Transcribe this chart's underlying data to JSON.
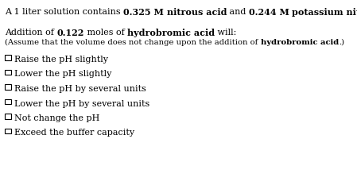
{
  "background_color": "#ffffff",
  "text_color": "#000000",
  "line1_parts": [
    [
      "A 1 liter solution contains ",
      false
    ],
    [
      "0.325 M",
      true
    ],
    [
      " ",
      false
    ],
    [
      "nitrous acid",
      true
    ],
    [
      " and ",
      false
    ],
    [
      "0.244 M",
      true
    ],
    [
      " ",
      false
    ],
    [
      "potassium nitrite",
      true
    ],
    [
      ".",
      false
    ]
  ],
  "line2_parts": [
    [
      "Addition of ",
      false
    ],
    [
      "0.122",
      true
    ],
    [
      " moles of ",
      false
    ],
    [
      "hydrobromic acid",
      true
    ],
    [
      " will:",
      false
    ]
  ],
  "line3_parts": [
    [
      "(Assume that the volume does not change upon the addition of ",
      false
    ],
    [
      "hydrobromic acid",
      true
    ],
    [
      ".)",
      false
    ]
  ],
  "options": [
    "Raise the pH slightly",
    "Lower the pH slightly",
    "Raise the pH by several units",
    "Lower the pH by several units",
    "Not change the pH",
    "Exceed the buffer capacity"
  ],
  "font_size_main": 8.0,
  "font_size_small": 7.2,
  "fig_width": 4.49,
  "fig_height": 2.38
}
